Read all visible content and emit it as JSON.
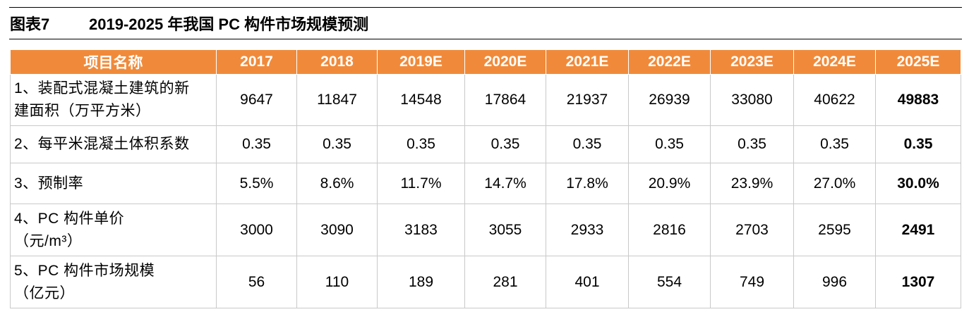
{
  "figure": {
    "label": "图表7",
    "title": "2019-2025 年我国 PC 构件市场规模预测"
  },
  "table": {
    "header": [
      "项目名称",
      "2017",
      "2018",
      "2019E",
      "2020E",
      "2021E",
      "2022E",
      "2023E",
      "2024E",
      "2025E"
    ],
    "rows": [
      {
        "name": [
          "1、装配式混凝土建筑的新",
          "建面积（万平方米）"
        ],
        "values": [
          "9647",
          "11847",
          "14548",
          "17864",
          "21937",
          "26939",
          "33080",
          "40622",
          "49883"
        ]
      },
      {
        "name": [
          "2、每平米混凝土体积系数"
        ],
        "values": [
          "0.35",
          "0.35",
          "0.35",
          "0.35",
          "0.35",
          "0.35",
          "0.35",
          "0.35",
          "0.35"
        ]
      },
      {
        "name": [
          "3、预制率"
        ],
        "values": [
          "5.5%",
          "8.6%",
          "11.7%",
          "14.7%",
          "17.8%",
          "20.9%",
          "23.9%",
          "27.0%",
          "30.0%"
        ]
      },
      {
        "name": [
          "4、PC 构件单价",
          "（元/m³）"
        ],
        "values": [
          "3000",
          "3090",
          "3183",
          "3055",
          "2933",
          "2816",
          "2703",
          "2595",
          "2491"
        ]
      },
      {
        "name": [
          "5、PC 构件市场规模",
          "（亿元）"
        ],
        "values": [
          "56",
          "110",
          "189",
          "281",
          "401",
          "554",
          "749",
          "996",
          "1307"
        ]
      }
    ]
  },
  "colors": {
    "header_bg": "#f08a3a",
    "header_text": "#ffffff",
    "grid": "#c9c9c9"
  }
}
